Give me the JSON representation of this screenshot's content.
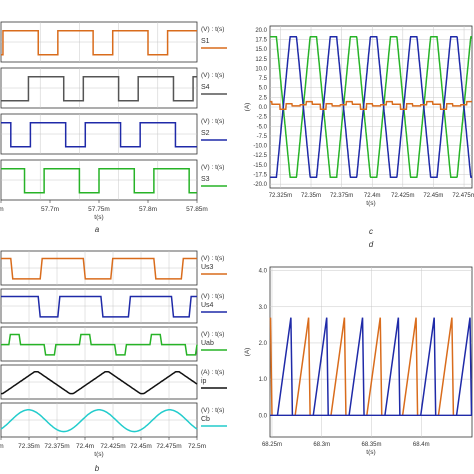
{
  "colors": {
    "orange": "#d96c1c",
    "gray": "#555555",
    "blue": "#1f2aa8",
    "green": "#27b327",
    "black": "#111111",
    "cyan": "#22cccc",
    "grid": "#c8c8c8",
    "axis": "#333333",
    "text": "#333333"
  },
  "chart_data": [
    {
      "id": "a",
      "panel_letter": "a",
      "type": "line",
      "xlabel": "t(s)",
      "x_ticks": [
        "m",
        "57.7m",
        "57.75m",
        "57.8m",
        "57.85m"
      ],
      "traces": [
        {
          "name": "S1",
          "unit_label": "(V) : t(s)",
          "color": "orange",
          "waveform": "square",
          "high_intervals": [
            [
              0.01,
              0.19
            ],
            [
              0.29,
              0.47
            ],
            [
              0.57,
              0.75
            ],
            [
              0.85,
              1.0
            ]
          ]
        },
        {
          "name": "S4",
          "unit_label": "(V) : t(s)",
          "color": "gray",
          "waveform": "square",
          "high_intervals": [
            [
              0.14,
              0.32
            ],
            [
              0.42,
              0.6
            ],
            [
              0.7,
              0.88
            ],
            [
              0.98,
              1.0
            ]
          ]
        },
        {
          "name": "S2",
          "unit_label": "(V) : t(s)",
          "color": "blue",
          "waveform": "square",
          "high_intervals": [
            [
              0.0,
              0.05
            ],
            [
              0.15,
              0.33
            ],
            [
              0.43,
              0.61
            ],
            [
              0.71,
              0.89
            ]
          ]
        },
        {
          "name": "S3",
          "unit_label": "(V) : t(s)",
          "color": "green",
          "waveform": "square",
          "high_intervals": [
            [
              0.0,
              0.12
            ],
            [
              0.22,
              0.4
            ],
            [
              0.5,
              0.68
            ],
            [
              0.78,
              0.96
            ]
          ]
        }
      ]
    },
    {
      "id": "b",
      "panel_letter": "b",
      "type": "line",
      "xlabel": "t(s)",
      "x_ticks": [
        "m",
        "72.35m",
        "72.375m",
        "72.4m",
        "72.425m",
        "72.45m",
        "72.475m",
        "72.5m"
      ],
      "traces": [
        {
          "name": "Us3",
          "unit_label": "(V) : t(s)",
          "color": "orange",
          "waveform": "rounded-square",
          "high_intervals": [
            [
              0.0,
              0.06
            ],
            [
              0.2,
              0.43
            ],
            [
              0.56,
              0.79
            ],
            [
              0.92,
              1.0
            ]
          ]
        },
        {
          "name": "Us4",
          "unit_label": "(V) : t(s)",
          "color": "blue",
          "waveform": "rounded-square",
          "high_intervals": [
            [
              0.0,
              0.2
            ],
            [
              0.29,
              0.52
            ],
            [
              0.65,
              0.88
            ],
            [
              0.96,
              1.0
            ]
          ]
        },
        {
          "name": "Uab",
          "unit_label": "(V) : t(s)",
          "color": "green",
          "waveform": "three-level",
          "high_intervals": [
            [
              0.04,
              0.1
            ],
            [
              0.4,
              0.46
            ],
            [
              0.76,
              0.82
            ]
          ],
          "low_intervals": [
            [
              0.22,
              0.28
            ],
            [
              0.58,
              0.64
            ],
            [
              0.94,
              1.0
            ]
          ]
        },
        {
          "name": "ip",
          "unit_label": "(A) : t(s)",
          "color": "black",
          "waveform": "trapezoid",
          "period": 0.36,
          "phase": 0.0
        },
        {
          "name": "Cb",
          "unit_label": "(V) : t(s)",
          "color": "cyan",
          "waveform": "sine",
          "period": 0.36,
          "phase": 0.05
        }
      ]
    },
    {
      "id": "c",
      "panel_letter": "c",
      "type": "line",
      "ylabel": "(A)",
      "xlabel": "t(s)",
      "ylim": [
        -21,
        21
      ],
      "y_ticks": [
        20.0,
        17.5,
        15.0,
        12.5,
        10.0,
        7.5,
        5.0,
        2.5,
        0.0,
        -2.5,
        -5.0,
        -7.5,
        -10.0,
        -12.5,
        -15.0,
        -17.5,
        -20.0
      ],
      "y_tick_labels": [
        "20.0",
        "17.5",
        "15.0",
        "12.5",
        "10.0",
        "7.5",
        "5.0",
        "2.5",
        "0.0",
        "-2.5",
        "-5.0",
        "-7.5",
        "-10.0",
        "-12.5",
        "-15.0",
        "-17.5",
        "-20.0"
      ],
      "xlim": [
        72.3165,
        72.4815
      ],
      "x_ticks": [
        72.325,
        72.35,
        72.375,
        72.4,
        72.425,
        72.45,
        72.475
      ],
      "x_tick_labels": [
        "72.325m",
        "72.35m",
        "72.375m",
        "72.4m",
        "72.425m",
        "72.45m",
        "72.475m"
      ],
      "period": 0.0328,
      "series": [
        {
          "color": "green",
          "shape": "trapezoid",
          "amplitude": 18.2,
          "flat_top_fraction": 0.16,
          "phase": 0.0
        },
        {
          "color": "blue",
          "shape": "trapezoid",
          "amplitude": 18.2,
          "flat_top_fraction": 0.16,
          "phase": 0.5
        },
        {
          "color": "orange",
          "shape": "small-ripple",
          "amplitude": 1.4,
          "phase": 0.25
        }
      ]
    },
    {
      "id": "d",
      "panel_letter": "d",
      "type": "line",
      "ylabel": "(A)",
      "xlabel": "t(s)",
      "ylim": [
        -0.6,
        4.1
      ],
      "y_ticks": [
        4.0,
        3.0,
        2.0,
        1.0,
        0.0
      ],
      "y_tick_labels": [
        "4.0",
        "3.0",
        "2.0",
        "1.0",
        "0.0"
      ],
      "xlim": [
        68.248,
        68.451
      ],
      "x_ticks": [
        68.25,
        68.3,
        68.35,
        68.4
      ],
      "x_tick_labels": [
        "68.25m",
        "68.3m",
        "68.35m",
        "68.4m"
      ],
      "series": [
        {
          "color": "blue",
          "shape": "sawtooth-pulse",
          "peak": 2.7,
          "starts": [
            68.2555,
            68.2915,
            68.3275,
            68.3635,
            68.3995,
            68.4355
          ],
          "rise": 0.0135
        },
        {
          "color": "orange",
          "shape": "sawtooth-pulse",
          "peak": 2.7,
          "starts": [
            68.2733,
            68.3093,
            68.3453,
            68.3813,
            68.4173
          ],
          "rise": 0.0135
        },
        {
          "color": "orange",
          "shape": "decay-only",
          "peak": 2.7,
          "starts": [
            68.2485
          ],
          "rise": 0.0
        }
      ]
    }
  ]
}
